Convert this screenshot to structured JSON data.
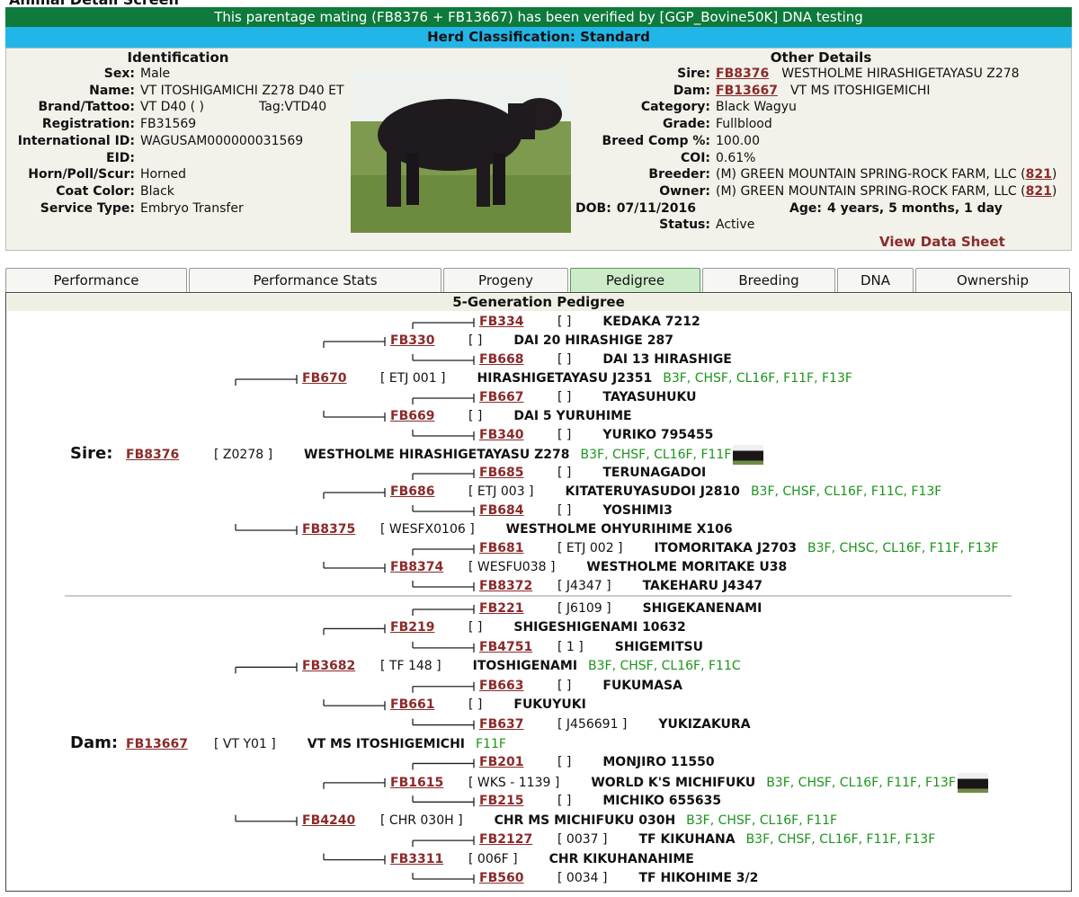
{
  "header": {
    "title": "Animal Detail Screen"
  },
  "banner": "This parentage mating (FB8376 + FB13667) has been verified by [GGP_Bovine50K] DNA testing",
  "classification": "Herd Classification: Standard",
  "identification": {
    "heading": "Identification",
    "tag": "Tag:VTD40",
    "rows": [
      {
        "label": "Sex:",
        "value": "Male"
      },
      {
        "label": "Name:",
        "value": "VT ITOSHIGAMICHI Z278 D40 ET"
      },
      {
        "label": "Brand/Tattoo:",
        "value": "VT D40 ( )"
      },
      {
        "label": "Registration:",
        "value": "FB31569"
      },
      {
        "label": "International ID:",
        "value": "WAGUSAM000000031569"
      },
      {
        "label": "EID:"
      },
      {
        "label": "Horn/Poll/Scur:",
        "value": "Horned"
      },
      {
        "label": "Coat Color:",
        "value": "Black"
      },
      {
        "label": "Service Type:",
        "value": "Embryo Transfer"
      }
    ]
  },
  "other_details": {
    "heading": "Other Details",
    "rows": [
      {
        "label": "Sire:",
        "link": "FB8376",
        "value": "WESTHOLME HIRASHIGETAYASU Z278"
      },
      {
        "label": "Dam:",
        "link": "FB13667",
        "value": "VT MS ITOSHIGEMICHI"
      },
      {
        "label": "Category:",
        "value": "Black Wagyu"
      },
      {
        "label": "Grade:",
        "value": "Fullblood"
      },
      {
        "label": "Breed Comp %:",
        "value": "100.00"
      },
      {
        "label": "COI:",
        "value": "0.61%"
      },
      {
        "label": "Breeder:",
        "value": "(M) GREEN MOUNTAIN SPRING-ROCK FARM, LLC (",
        "link": "821",
        "close": ")"
      },
      {
        "label": "Owner:",
        "value": "(M) GREEN MOUNTAIN SPRING-ROCK FARM, LLC (",
        "link": "821",
        "close": ")"
      },
      {
        "label": "Status:",
        "value": "Active"
      }
    ],
    "dob": {
      "label": "DOB:",
      "value": "07/11/2016"
    },
    "age": {
      "label": "Age:",
      "value": "4 years, 5 months, 1 day"
    },
    "data_sheet": "View Data Sheet"
  },
  "tabs": [
    "Performance",
    "Performance Stats",
    "Progeny",
    "Pedigree",
    "Breeding",
    "DNA",
    "Ownership"
  ],
  "active_tab": "Pedigree",
  "pedigree": {
    "title": "5-Generation Pedigree",
    "rows": [
      {
        "generation": 3,
        "id": "FB334",
        "reg": "[ ]",
        "name": "KEDAKA 7212"
      },
      {
        "generation": 2,
        "id": "FB330",
        "reg": "[ ]",
        "name": "DAI 20 HIRASHIGE 287"
      },
      {
        "generation": 3,
        "id": "FB668",
        "reg": "[ ]",
        "name": "DAI 13 HIRASHIGE"
      },
      {
        "generation": 1,
        "id": "FB670",
        "reg": "[ ETJ 001 ]",
        "name": "HIRASHIGETAYASU J2351",
        "traits": "B3F, CHSF, CL16F, F11F, F13F"
      },
      {
        "generation": 3,
        "id": "FB667",
        "reg": "[ ]",
        "name": "TAYASUHUKU"
      },
      {
        "generation": 2,
        "id": "FB669",
        "reg": "[ ]",
        "name": "DAI 5 YURUHIME"
      },
      {
        "generation": 3,
        "id": "FB340",
        "reg": "[ ]",
        "name": "YURIKO 795455"
      },
      {
        "generation": 0,
        "label": "Sire:",
        "id": "FB8376",
        "reg": "[ Z0278 ]",
        "name": "WESTHOLME HIRASHIGETAYASU Z278",
        "traits": "B3F, CHSF, CL16F, F11F",
        "photo": true
      },
      {
        "generation": 3,
        "id": "FB685",
        "reg": "[ ]",
        "name": "TERUNAGADOI"
      },
      {
        "generation": 2,
        "id": "FB686",
        "reg": "[ ETJ 003 ]",
        "name": "KITATERUYASUDOI J2810",
        "traits": "B3F, CHSF, CL16F, F11C, F13F"
      },
      {
        "generation": 3,
        "id": "FB684",
        "reg": "[ ]",
        "name": "YOSHIMI3"
      },
      {
        "generation": 1,
        "id": "FB8375",
        "reg": "[ WESFX0106 ]",
        "name": "WESTHOLME OHYURIHIME X106"
      },
      {
        "generation": 3,
        "id": "FB681",
        "reg": "[ ETJ 002 ]",
        "name": "ITOMORITAKA J2703",
        "traits": "B3F, CHSC, CL16F, F11F, F13F"
      },
      {
        "generation": 2,
        "id": "FB8374",
        "reg": "[ WESFU038 ]",
        "name": "WESTHOLME MORITAKE U38"
      },
      {
        "generation": 3,
        "id": "FB8372",
        "reg": "[ J4347 ]",
        "name": "TAKEHARU J4347"
      },
      {
        "generation": 3,
        "id": "FB221",
        "reg": "[ J6109 ]",
        "name": "SHIGEKANENAMI"
      },
      {
        "generation": 2,
        "id": "FB219",
        "reg": "[ ]",
        "name": "SHIGESHIGENAMI 10632"
      },
      {
        "generation": 3,
        "id": "FB4751",
        "reg": "[ 1 ]",
        "name": "SHIGEMITSU"
      },
      {
        "generation": 1,
        "id": "FB3682",
        "reg": "[ TF 148 ]",
        "name": "ITOSHIGENAMI",
        "traits": "B3F, CHSF, CL16F, F11C"
      },
      {
        "generation": 3,
        "id": "FB663",
        "reg": "[ ]",
        "name": "FUKUMASA"
      },
      {
        "generation": 2,
        "id": "FB661",
        "reg": "[ ]",
        "name": "FUKUYUKI"
      },
      {
        "generation": 3,
        "id": "FB637",
        "reg": "[ J456691 ]",
        "name": "YUKIZAKURA"
      },
      {
        "generation": 0,
        "label": "Dam:",
        "id": "FB13667",
        "reg": "[ VT Y01 ]",
        "name": "VT MS ITOSHIGEMICHI",
        "traits": "F11F"
      },
      {
        "generation": 3,
        "id": "FB201",
        "reg": "[ ]",
        "name": "MONJIRO 11550"
      },
      {
        "generation": 2,
        "id": "FB1615",
        "reg": "[ WKS - 1139 ]",
        "name": "WORLD K'S MICHIFUKU",
        "traits": "B3F, CHSF, CL16F, F11F, F13F",
        "photo": true
      },
      {
        "generation": 3,
        "id": "FB215",
        "reg": "[ ]",
        "name": "MICHIKO 655635"
      },
      {
        "generation": 1,
        "id": "FB4240",
        "reg": "[ CHR 030H ]",
        "name": "CHR MS MICHIFUKU 030H",
        "traits": "B3F, CHSF, CL16F, F11F"
      },
      {
        "generation": 3,
        "id": "FB2127",
        "reg": "[ 0037 ]",
        "name": "TF KIKUHANA",
        "traits": "B3F, CHSF, CL16F, F11F, F13F"
      },
      {
        "generation": 2,
        "id": "FB3311",
        "reg": "[ 006F ]",
        "name": "CHR KIKUHANAHIME"
      },
      {
        "generation": 3,
        "id": "FB560",
        "reg": "[ 0034 ]",
        "name": "TF HIKOHIME 3/2"
      }
    ]
  }
}
